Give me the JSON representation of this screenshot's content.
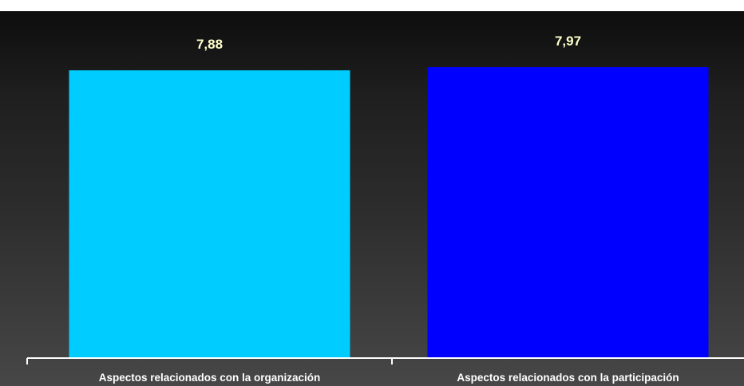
{
  "chart_data": {
    "type": "bar",
    "categories": [
      "Aspectos relacionados con la organización",
      "Aspectos relacionados con la participación"
    ],
    "values": [
      7.88,
      7.97
    ],
    "value_labels": [
      "7,88",
      "7,97"
    ],
    "colors": [
      "#00ccff",
      "#0000ff"
    ],
    "ylim": [
      0,
      9.5
    ],
    "grid": false,
    "legend": "none"
  },
  "style": {
    "label_color": "#ffffcc",
    "axis_color": "#ffffff"
  }
}
